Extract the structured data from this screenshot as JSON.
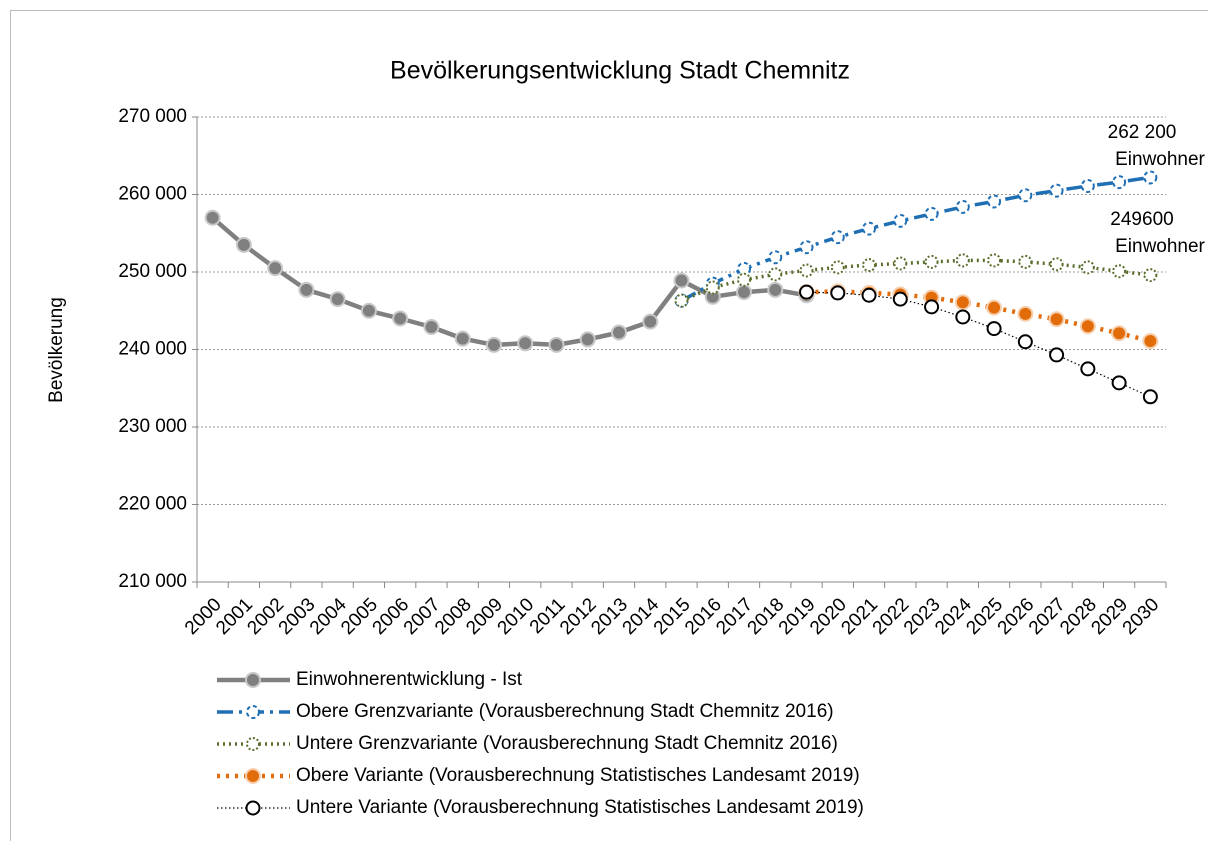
{
  "chart_data": {
    "type": "line",
    "title": "Bevölkerungsentwicklung Stadt Chemnitz",
    "y_label": "Bevölkerung",
    "categories": [
      "2000",
      "2001",
      "2002",
      "2003",
      "2004",
      "2005",
      "2006",
      "2007",
      "2008",
      "2009",
      "2010",
      "2011",
      "2012",
      "2013",
      "2014",
      "2015",
      "2016",
      "2017",
      "2018",
      "2019",
      "2020",
      "2021",
      "2022",
      "2023",
      "2024",
      "2025",
      "2026",
      "2027",
      "2028",
      "2029",
      "2030"
    ],
    "ylim": [
      210000,
      270000
    ],
    "yticks": [
      {
        "value": 210000,
        "label": "210 000"
      },
      {
        "value": 220000,
        "label": "220 000"
      },
      {
        "value": 230000,
        "label": "230 000"
      },
      {
        "value": 240000,
        "label": "240 000"
      },
      {
        "value": 250000,
        "label": "250 000"
      },
      {
        "value": 260000,
        "label": "260 000"
      },
      {
        "value": 270000,
        "label": "270 000"
      }
    ],
    "grid": true,
    "legend": "bottom",
    "series": [
      {
        "name": "Einwohnerentwicklung - Ist",
        "color": "#808080",
        "values": [
          257000,
          253500,
          250500,
          247700,
          246500,
          245000,
          244000,
          242900,
          241400,
          240600,
          240800,
          240600,
          241300,
          242200,
          243600,
          248900,
          246800,
          247400,
          247700,
          247000,
          null,
          null,
          null,
          null,
          null,
          null,
          null,
          null,
          null,
          null,
          null
        ]
      },
      {
        "name": "Obere Grenzvariante (Vorausberechnung Stadt Chemnitz 2016)",
        "color": "#1f6fb5",
        "values": [
          null,
          null,
          null,
          null,
          null,
          null,
          null,
          null,
          null,
          null,
          null,
          null,
          null,
          null,
          null,
          246300,
          248500,
          250400,
          251900,
          253200,
          254500,
          255600,
          256600,
          257500,
          258400,
          259100,
          259900,
          260500,
          261100,
          261600,
          262200
        ]
      },
      {
        "name": "Untere Grenzvariante (Vorausberechnung Stadt Chemnitz 2016)",
        "color": "#5a6e2e",
        "values": [
          null,
          null,
          null,
          null,
          null,
          null,
          null,
          null,
          null,
          null,
          null,
          null,
          null,
          null,
          null,
          246300,
          248000,
          249000,
          249700,
          250200,
          250600,
          250900,
          251100,
          251300,
          251500,
          251500,
          251300,
          251000,
          250600,
          250100,
          249600
        ]
      },
      {
        "name": "Obere Variante (Vorausberechnung Statistisches Landesamt 2019)",
        "color": "#e36c0a",
        "values": [
          null,
          null,
          null,
          null,
          null,
          null,
          null,
          null,
          null,
          null,
          null,
          null,
          null,
          null,
          null,
          null,
          null,
          null,
          null,
          247400,
          247500,
          247300,
          247100,
          246700,
          246100,
          245400,
          244600,
          243900,
          243000,
          242100,
          241100
        ]
      },
      {
        "name": "Untere Variante (Vorausberechnung Statistisches Landesamt 2019)",
        "color": "#000000",
        "values": [
          null,
          null,
          null,
          null,
          null,
          null,
          null,
          null,
          null,
          null,
          null,
          null,
          null,
          null,
          null,
          null,
          null,
          null,
          null,
          247400,
          247300,
          247000,
          246500,
          245500,
          244200,
          242700,
          241000,
          239300,
          237500,
          235700,
          233900
        ]
      }
    ],
    "annotations": [
      [
        "262 200",
        "Einwohner"
      ],
      [
        "249600",
        "Einwohner"
      ]
    ]
  }
}
